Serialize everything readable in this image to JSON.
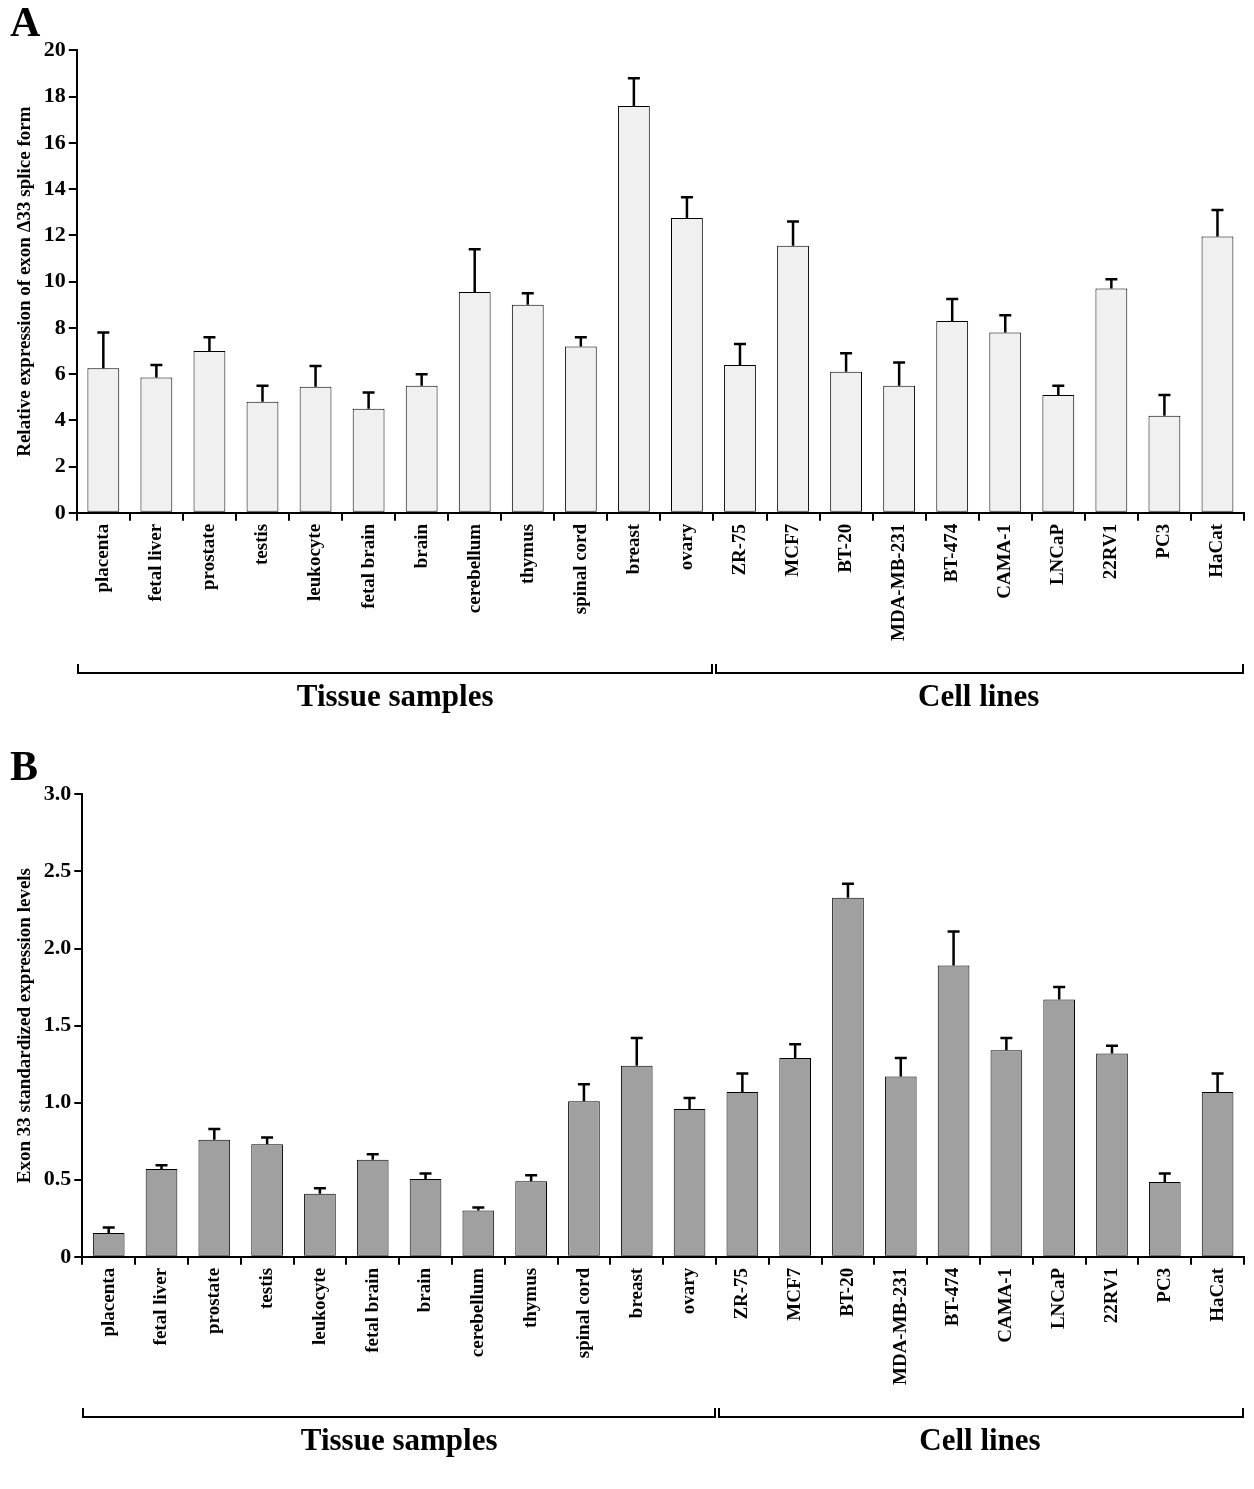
{
  "chart_data": [
    {
      "type": "bar",
      "title": "A",
      "ylabel": "Relative expression of exon Δ33 splice form",
      "categories": [
        "placenta",
        "fetal liver",
        "prostate",
        "testis",
        "leukocyte",
        "fetal brain",
        "brain",
        "cerebellum",
        "thymus",
        "spinal cord",
        "breast",
        "ovary",
        "ZR-75",
        "MCF7",
        "BT-20",
        "MDA-MB-231",
        "BT-474",
        "CAMA-1",
        "LNCaP",
        "22RV1",
        "PC3",
        "HaCat"
      ],
      "values": [
        6.25,
        5.85,
        7.0,
        4.8,
        5.45,
        4.5,
        5.5,
        9.55,
        9.0,
        7.2,
        17.6,
        12.75,
        6.4,
        11.55,
        6.1,
        5.5,
        8.3,
        7.8,
        5.1,
        9.7,
        4.2,
        11.95
      ],
      "errors": [
        [
          6.25,
          7.8
        ],
        [
          5.85,
          6.4
        ],
        [
          7.0,
          7.6
        ],
        [
          4.8,
          5.5
        ],
        [
          5.45,
          6.35
        ],
        [
          4.5,
          5.2
        ],
        [
          5.5,
          6.0
        ],
        [
          9.55,
          11.4
        ],
        [
          9.0,
          9.5
        ],
        [
          7.2,
          7.6
        ],
        [
          17.6,
          18.8
        ],
        [
          12.75,
          13.65
        ],
        [
          6.4,
          7.3
        ],
        [
          11.55,
          12.6
        ],
        [
          6.1,
          6.9
        ],
        [
          5.5,
          6.5
        ],
        [
          8.3,
          9.25
        ],
        [
          7.8,
          8.55
        ],
        [
          5.1,
          5.5
        ],
        [
          9.7,
          10.1
        ],
        [
          4.2,
          5.1
        ],
        [
          11.95,
          13.1
        ]
      ],
      "color": "#f0f0f0",
      "ylim": [
        0,
        20
      ],
      "yticks": [
        0,
        2,
        4,
        6,
        8,
        10,
        12,
        14,
        16,
        18,
        20
      ],
      "grid": false,
      "annotations": [
        "Tissue samples",
        "Cell lines"
      ]
    },
    {
      "type": "bar",
      "title": "B",
      "ylabel": "Exon 33 standardized expression levels",
      "categories": [
        "placenta",
        "fetal liver",
        "prostate",
        "testis",
        "leukocyte",
        "fetal brain",
        "brain",
        "cerebellum",
        "thymus",
        "spinal cord",
        "breast",
        "ovary",
        "ZR-75",
        "MCF7",
        "BT-20",
        "MDA-MB-231",
        "BT-474",
        "CAMA-1",
        "LNCaP",
        "22RV1",
        "PC3",
        "HaCat"
      ],
      "values": [
        0.155,
        0.57,
        0.76,
        0.73,
        0.41,
        0.63,
        0.505,
        0.3,
        0.49,
        1.01,
        1.24,
        0.96,
        1.07,
        1.29,
        2.33,
        1.17,
        1.89,
        1.34,
        1.67,
        1.32,
        0.485,
        1.07
      ],
      "errors": [
        [
          0.155,
          0.19
        ],
        [
          0.57,
          0.595
        ],
        [
          0.76,
          0.83
        ],
        [
          0.73,
          0.775
        ],
        [
          0.41,
          0.445
        ],
        [
          0.63,
          0.665
        ],
        [
          0.505,
          0.54
        ],
        [
          0.3,
          0.32
        ],
        [
          0.49,
          0.53
        ],
        [
          1.01,
          1.12
        ],
        [
          1.24,
          1.42
        ],
        [
          0.96,
          1.03
        ],
        [
          1.07,
          1.19
        ],
        [
          1.29,
          1.38
        ],
        [
          2.33,
          2.42
        ],
        [
          1.17,
          1.29
        ],
        [
          1.89,
          2.11
        ],
        [
          1.34,
          1.42
        ],
        [
          1.67,
          1.75
        ],
        [
          1.32,
          1.37
        ],
        [
          0.485,
          0.54
        ],
        [
          1.07,
          1.19
        ]
      ],
      "color": "#a0a0a0",
      "ylim": [
        0,
        3
      ],
      "yticks": [
        0,
        0.5,
        {
          "value": 1,
          "label": "1.0"
        },
        1.5,
        {
          "value": 2,
          "label": "2.0"
        },
        2.5,
        {
          "value": 3,
          "label": "3.0"
        }
      ],
      "grid": false,
      "annotations": [
        "Tissue samples",
        "Cell lines"
      ]
    }
  ]
}
